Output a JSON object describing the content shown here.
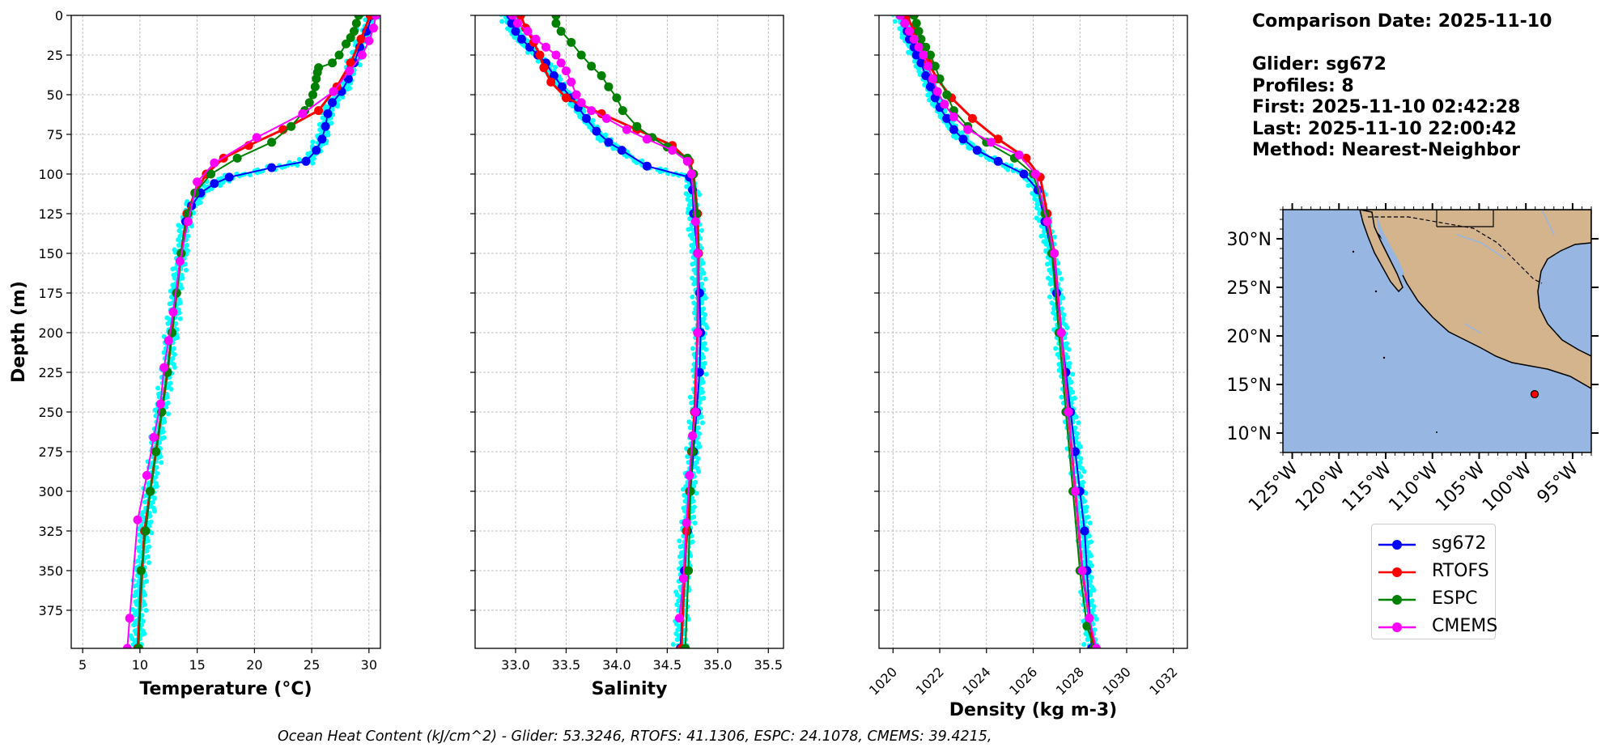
{
  "chart_data": [
    {
      "type": "line",
      "xlabel": "Temperature (°C)",
      "ylabel": "Depth (m)",
      "xlim": [
        4,
        31
      ],
      "ylim": [
        399,
        0
      ],
      "xticks": [
        5,
        10,
        15,
        20,
        25,
        30
      ],
      "yticks": [
        0,
        25,
        50,
        75,
        100,
        125,
        150,
        175,
        200,
        225,
        250,
        275,
        300,
        325,
        350,
        375
      ],
      "grid": true,
      "series": [
        {
          "name": "sg672",
          "color": "#0000ff",
          "x": [
            30.3,
            29.8,
            29.2,
            28.7,
            28.2,
            27.6,
            26.8,
            26.4,
            26.2,
            25.9,
            25.4,
            24.5,
            21.5,
            17.8,
            16.5,
            15.3,
            14.5,
            14.0,
            13.6,
            13.2,
            12.8,
            12.4,
            11.9,
            11.4,
            10.9,
            10.5,
            10.1,
            9.8
          ],
          "y": [
            0,
            10,
            20,
            30,
            40,
            48,
            55,
            62,
            70,
            78,
            85,
            92,
            96,
            102,
            106,
            112,
            120,
            130,
            150,
            175,
            200,
            225,
            250,
            275,
            300,
            325,
            350,
            399
          ]
        },
        {
          "name": "RTOFS",
          "color": "#ff0000",
          "x": [
            30.1,
            29.3,
            28.4,
            27.2,
            25.6,
            22.5,
            19.5,
            17.3,
            15.8,
            14.8,
            14.1,
            13.6,
            13.2,
            12.8,
            12.4,
            11.9,
            11.4,
            10.9,
            10.4,
            9.8
          ],
          "y": [
            0,
            15,
            30,
            45,
            60,
            72,
            82,
            90,
            100,
            112,
            125,
            150,
            175,
            200,
            225,
            250,
            275,
            300,
            325,
            399
          ]
        },
        {
          "name": "ESPC",
          "color": "#008000",
          "x": [
            29.1,
            28.9,
            28.7,
            28.4,
            28.0,
            27.4,
            26.8,
            25.6,
            25.5,
            25.4,
            25.3,
            25.1,
            24.8,
            24.4,
            23.2,
            21.5,
            18.5,
            16.2,
            14.8,
            14.2,
            13.6,
            13.2,
            12.8,
            12.4,
            11.9,
            11.4,
            10.9,
            10.5,
            10.1,
            9.9
          ],
          "y": [
            0,
            5,
            10,
            14,
            18,
            25,
            30,
            33,
            36,
            40,
            45,
            50,
            55,
            60,
            70,
            80,
            90,
            100,
            112,
            125,
            150,
            175,
            200,
            225,
            250,
            275,
            300,
            325,
            350,
            399
          ]
        },
        {
          "name": "CMEMS",
          "color": "#ff00ff",
          "x": [
            30.6,
            30.4,
            30.0,
            29.4,
            28.3,
            26.9,
            24.2,
            20.2,
            16.5,
            15.0,
            14.2,
            13.5,
            12.9,
            12.5,
            12.1,
            11.8,
            11.2,
            10.6,
            9.8,
            9.1,
            8.9
          ],
          "y": [
            0,
            8,
            16,
            25,
            35,
            48,
            62,
            77,
            93,
            105,
            130,
            155,
            187,
            205,
            222,
            245,
            266,
            290,
            318,
            380,
            399
          ]
        }
      ]
    },
    {
      "type": "line",
      "xlabel": "Salinity",
      "xlim": [
        32.6,
        35.65
      ],
      "ylim": [
        399,
        0
      ],
      "xticks": [
        33.0,
        33.5,
        34.0,
        34.5,
        35.0,
        35.5
      ],
      "grid": true,
      "series": [
        {
          "name": "sg672",
          "color": "#0000ff",
          "x": [
            32.95,
            32.96,
            33.0,
            33.06,
            33.14,
            33.22,
            33.3,
            33.38,
            33.46,
            33.55,
            33.62,
            33.7,
            33.8,
            33.92,
            34.05,
            34.3,
            34.72,
            34.75,
            34.76,
            34.8,
            34.82,
            34.83,
            34.82,
            34.79,
            34.76,
            34.73,
            34.7,
            34.67,
            34.63
          ],
          "y": [
            0,
            5,
            10,
            15,
            20,
            25,
            30,
            38,
            45,
            52,
            58,
            65,
            73,
            80,
            85,
            95,
            102,
            110,
            125,
            150,
            175,
            200,
            225,
            250,
            275,
            300,
            325,
            350,
            399
          ]
        },
        {
          "name": "RTOFS",
          "color": "#ff0000",
          "x": [
            33.05,
            33.1,
            33.18,
            33.24,
            33.28,
            33.35,
            33.5,
            33.85,
            34.2,
            34.55,
            34.72,
            34.76,
            34.8,
            34.81,
            34.8,
            34.77,
            34.74,
            34.72,
            34.69,
            34.64
          ],
          "y": [
            0,
            8,
            17,
            25,
            33,
            42,
            52,
            62,
            72,
            82,
            92,
            100,
            125,
            150,
            200,
            250,
            275,
            300,
            325,
            399
          ]
        },
        {
          "name": "ESPC",
          "color": "#008000",
          "x": [
            33.4,
            33.4,
            33.45,
            33.55,
            33.65,
            33.75,
            33.85,
            33.92,
            34.0,
            34.06,
            34.2,
            34.35,
            34.5,
            34.7,
            34.76,
            34.79,
            34.8,
            34.8,
            34.78,
            34.75,
            34.73,
            34.71,
            34.68
          ],
          "y": [
            0,
            5,
            10,
            17,
            25,
            32,
            38,
            45,
            52,
            60,
            70,
            77,
            83,
            90,
            100,
            125,
            150,
            200,
            250,
            275,
            300,
            350,
            399
          ]
        },
        {
          "name": "CMEMS",
          "color": "#ff00ff",
          "x": [
            32.97,
            33.02,
            33.12,
            33.2,
            33.3,
            33.4,
            33.45,
            33.5,
            33.55,
            33.6,
            33.65,
            33.75,
            33.9,
            34.1,
            34.3,
            34.55,
            34.7,
            34.74,
            34.78,
            34.8,
            34.8,
            34.78,
            34.75,
            34.72,
            34.69,
            34.66,
            34.62
          ],
          "y": [
            0,
            5,
            10,
            15,
            20,
            25,
            30,
            35,
            42,
            50,
            55,
            60,
            65,
            72,
            78,
            85,
            92,
            100,
            130,
            150,
            200,
            250,
            265,
            290,
            320,
            355,
            380
          ]
        }
      ]
    },
    {
      "type": "line",
      "xlabel": "Density (kg m-3)",
      "xlim": [
        1019.4,
        1032.6
      ],
      "ylim": [
        399,
        0
      ],
      "xticks": [
        1020,
        1022,
        1024,
        1026,
        1028,
        1030,
        1032
      ],
      "grid": true,
      "series": [
        {
          "name": "sg672",
          "color": "#0000ff",
          "x": [
            1020.4,
            1020.5,
            1020.6,
            1020.7,
            1020.9,
            1021.0,
            1021.2,
            1021.4,
            1021.6,
            1021.8,
            1022.0,
            1022.3,
            1022.6,
            1023.0,
            1023.6,
            1024.5,
            1025.6,
            1026.2,
            1026.5,
            1026.8,
            1027.0,
            1027.2,
            1027.4,
            1027.6,
            1027.8,
            1028.0,
            1028.2,
            1028.3,
            1028.5
          ],
          "y": [
            0,
            5,
            10,
            15,
            20,
            25,
            30,
            38,
            45,
            52,
            58,
            65,
            72,
            78,
            85,
            92,
            100,
            110,
            130,
            150,
            175,
            200,
            225,
            250,
            275,
            300,
            325,
            350,
            399
          ]
        },
        {
          "name": "RTOFS",
          "color": "#ff0000",
          "x": [
            1020.6,
            1020.9,
            1021.2,
            1021.5,
            1021.9,
            1022.5,
            1023.4,
            1024.5,
            1025.7,
            1026.3,
            1026.6,
            1026.9,
            1027.2,
            1027.5,
            1027.8,
            1028.1,
            1028.4,
            1028.6
          ],
          "y": [
            0,
            10,
            20,
            30,
            40,
            52,
            65,
            78,
            90,
            102,
            125,
            150,
            200,
            250,
            300,
            350,
            380,
            399
          ]
        },
        {
          "name": "ESPC",
          "color": "#008000",
          "x": [
            1020.9,
            1021.0,
            1021.1,
            1021.2,
            1021.4,
            1021.6,
            1021.8,
            1022.0,
            1022.3,
            1022.6,
            1023.2,
            1024.0,
            1025.2,
            1026.0,
            1026.5,
            1026.8,
            1027.1,
            1027.4,
            1027.7,
            1028.0,
            1028.3,
            1028.6
          ],
          "y": [
            0,
            5,
            10,
            15,
            20,
            25,
            32,
            40,
            50,
            60,
            70,
            80,
            90,
            100,
            125,
            150,
            200,
            250,
            300,
            350,
            385,
            399
          ]
        },
        {
          "name": "CMEMS",
          "color": "#ff00ff",
          "x": [
            1020.3,
            1020.5,
            1020.7,
            1020.9,
            1021.1,
            1021.3,
            1021.5,
            1021.7,
            1021.9,
            1022.2,
            1022.6,
            1023.2,
            1024.2,
            1025.4,
            1026.1,
            1026.6,
            1026.9,
            1027.2,
            1027.5,
            1027.8,
            1028.1,
            1028.4,
            1028.7
          ],
          "y": [
            0,
            5,
            10,
            15,
            20,
            25,
            32,
            40,
            48,
            56,
            64,
            72,
            80,
            88,
            100,
            130,
            150,
            200,
            250,
            300,
            350,
            380,
            399
          ]
        }
      ]
    },
    {
      "type": "map",
      "lat_ticks": [
        "10°N",
        "15°N",
        "20°N",
        "25°N",
        "30°N"
      ],
      "lon_ticks": [
        "125°W",
        "120°W",
        "115°W",
        "110°W",
        "105°W",
        "100°W",
        "95°W"
      ],
      "lat_range": [
        8,
        33
      ],
      "lon_range": [
        -126,
        -93
      ],
      "marker": {
        "lon": -98.2,
        "lat": 14.5,
        "color": "#ff0000"
      },
      "colors": {
        "ocean": "#97b6e1",
        "land": "#d3b48c"
      }
    }
  ],
  "info": {
    "comparison_date": "Comparison Date: 2025-11-10",
    "glider": "Glider: sg672",
    "profiles": "Profiles: 8",
    "first": "First: 2025-11-10 02:42:28",
    "last": "Last: 2025-11-10 22:00:42",
    "method": "Method: Nearest-Neighbor"
  },
  "legend": [
    {
      "label": "sg672",
      "color": "#0000ff"
    },
    {
      "label": "RTOFS",
      "color": "#ff0000"
    },
    {
      "label": "ESPC",
      "color": "#008000"
    },
    {
      "label": "CMEMS",
      "color": "#ff00ff"
    }
  ],
  "footer": "Ocean Heat Content (kJ/cm^2) - Glider: 53.3246,  RTOFS: 41.1306,  ESPC: 24.1078,  CMEMS: 39.4215,"
}
